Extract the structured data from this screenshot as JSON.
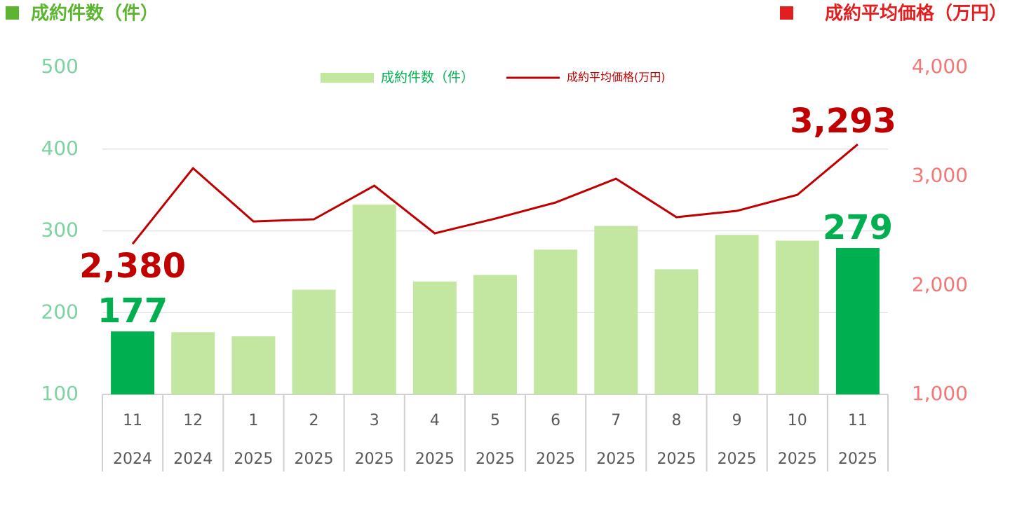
{
  "chart_data": {
    "type": "bar_line",
    "y_label": "成約件数（件）",
    "y2_label": "成約平均価格（万円）",
    "categories": [
      [
        "11",
        "2024"
      ],
      [
        "12",
        "2024"
      ],
      [
        "1",
        "2025"
      ],
      [
        "2",
        "2025"
      ],
      [
        "3",
        "2025"
      ],
      [
        "4",
        "2025"
      ],
      [
        "5",
        "2025"
      ],
      [
        "6",
        "2025"
      ],
      [
        "7",
        "2025"
      ],
      [
        "8",
        "2025"
      ],
      [
        "9",
        "2025"
      ],
      [
        "10",
        "2025"
      ],
      [
        "11",
        "2025"
      ]
    ],
    "series": [
      {
        "name": "成約件数（件）",
        "type": "bar",
        "color": "#c3e6a1",
        "colors": [
          "#00b050",
          "#c3e6a1",
          "#c3e6a1",
          "#c3e6a1",
          "#c3e6a1",
          "#c3e6a1",
          "#c3e6a1",
          "#c3e6a1",
          "#c3e6a1",
          "#c3e6a1",
          "#c3e6a1",
          "#c3e6a1",
          "#00b050"
        ],
        "values": [
          177,
          176,
          171,
          228,
          332,
          238,
          246,
          277,
          306,
          253,
          295,
          288,
          279
        ],
        "value_labels": [
          "177",
          null,
          null,
          null,
          null,
          null,
          null,
          null,
          null,
          null,
          null,
          null,
          "279"
        ],
        "label_color": "#00b050"
      },
      {
        "name": "成約平均価格(万円)",
        "type": "line",
        "axis": "y2",
        "color": "#c00000",
        "values": [
          2380,
          3074,
          2586,
          2606,
          2914,
          2477,
          2612,
          2760,
          2978,
          2625,
          2683,
          2830,
          3293
        ],
        "value_labels": [
          "2,380",
          null,
          null,
          null,
          null,
          null,
          null,
          null,
          null,
          null,
          null,
          null,
          "3,293"
        ],
        "label_color": "#c00000"
      }
    ],
    "ylim": [
      100,
      500
    ],
    "yticks": [
      100,
      200,
      300,
      400,
      500
    ],
    "y2lim": [
      1000,
      4000
    ],
    "y2ticks": [
      {
        "value": 1000,
        "label": "1,000"
      },
      {
        "value": 2000,
        "label": "2,000"
      },
      {
        "value": 3000,
        "label": "3,000"
      },
      {
        "value": 4000,
        "label": "4,000"
      }
    ],
    "grid": true,
    "y_tick_color": "#7dd3a0",
    "y2_tick_color": "#f47777"
  }
}
